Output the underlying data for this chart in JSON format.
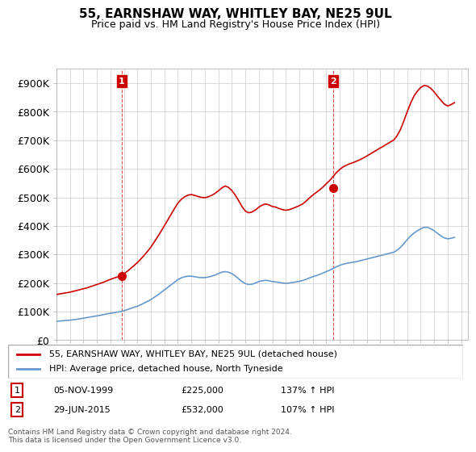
{
  "title": "55, EARNSHAW WAY, WHITLEY BAY, NE25 9UL",
  "subtitle": "Price paid vs. HM Land Registry's House Price Index (HPI)",
  "ylim": [
    0,
    950000
  ],
  "yticks": [
    0,
    100000,
    200000,
    300000,
    400000,
    500000,
    600000,
    700000,
    800000,
    900000
  ],
  "ytick_labels": [
    "£0",
    "£100K",
    "£200K",
    "£300K",
    "£400K",
    "£500K",
    "£600K",
    "£700K",
    "£800K",
    "£900K"
  ],
  "sale1": {
    "date_num": 1999.84,
    "price": 225000,
    "label": "1",
    "date_str": "05-NOV-1999",
    "hpi_pct": "137% ↑ HPI"
  },
  "sale2": {
    "date_num": 2015.49,
    "price": 532000,
    "label": "2",
    "date_str": "29-JUN-2015",
    "hpi_pct": "107% ↑ HPI"
  },
  "line_color_red": "#cc0000",
  "line_color_blue": "#6699cc",
  "grid_color": "#cccccc",
  "background_color": "#ffffff",
  "legend_label_red": "55, EARNSHAW WAY, WHITLEY BAY, NE25 9UL (detached house)",
  "legend_label_blue": "HPI: Average price, detached house, North Tyneside",
  "annotation_box_color": "#cc0000",
  "footer": "Contains HM Land Registry data © Crown copyright and database right 2024.\nThis data is licensed under the Open Government Licence v3.0.",
  "hpi_data": {
    "dates": [
      1995.0,
      1995.25,
      1995.5,
      1995.75,
      1996.0,
      1996.25,
      1996.5,
      1996.75,
      1997.0,
      1997.25,
      1997.5,
      1997.75,
      1998.0,
      1998.25,
      1998.5,
      1998.75,
      1999.0,
      1999.25,
      1999.5,
      1999.75,
      2000.0,
      2000.25,
      2000.5,
      2000.75,
      2001.0,
      2001.25,
      2001.5,
      2001.75,
      2002.0,
      2002.25,
      2002.5,
      2002.75,
      2003.0,
      2003.25,
      2003.5,
      2003.75,
      2004.0,
      2004.25,
      2004.5,
      2004.75,
      2005.0,
      2005.25,
      2005.5,
      2005.75,
      2006.0,
      2006.25,
      2006.5,
      2006.75,
      2007.0,
      2007.25,
      2007.5,
      2007.75,
      2008.0,
      2008.25,
      2008.5,
      2008.75,
      2009.0,
      2009.25,
      2009.5,
      2009.75,
      2010.0,
      2010.25,
      2010.5,
      2010.75,
      2011.0,
      2011.25,
      2011.5,
      2011.75,
      2012.0,
      2012.25,
      2012.5,
      2012.75,
      2013.0,
      2013.25,
      2013.5,
      2013.75,
      2014.0,
      2014.25,
      2014.5,
      2014.75,
      2015.0,
      2015.25,
      2015.5,
      2015.75,
      2016.0,
      2016.25,
      2016.5,
      2016.75,
      2017.0,
      2017.25,
      2017.5,
      2017.75,
      2018.0,
      2018.25,
      2018.5,
      2018.75,
      2019.0,
      2019.25,
      2019.5,
      2019.75,
      2020.0,
      2020.25,
      2020.5,
      2020.75,
      2021.0,
      2021.25,
      2021.5,
      2021.75,
      2022.0,
      2022.25,
      2022.5,
      2022.75,
      2023.0,
      2023.25,
      2023.5,
      2023.75,
      2024.0,
      2024.25,
      2024.5
    ],
    "values": [
      66000,
      67000,
      68000,
      69000,
      70000,
      71500,
      73000,
      75000,
      77000,
      79000,
      81000,
      83000,
      85000,
      87000,
      89500,
      92000,
      94000,
      96000,
      98000,
      100000,
      103000,
      107000,
      111000,
      115000,
      119000,
      124000,
      130000,
      136000,
      142000,
      150000,
      158000,
      167000,
      176000,
      185000,
      194000,
      203000,
      212000,
      218000,
      222000,
      224000,
      224000,
      222000,
      220000,
      219000,
      219000,
      221000,
      224000,
      228000,
      233000,
      238000,
      240000,
      238000,
      233000,
      225000,
      215000,
      205000,
      198000,
      195000,
      196000,
      200000,
      205000,
      208000,
      210000,
      208000,
      205000,
      204000,
      202000,
      200000,
      199000,
      200000,
      202000,
      204000,
      206000,
      209000,
      213000,
      218000,
      222000,
      226000,
      230000,
      235000,
      240000,
      245000,
      251000,
      257000,
      262000,
      266000,
      269000,
      271000,
      273000,
      275000,
      278000,
      281000,
      284000,
      287000,
      290000,
      293000,
      296000,
      299000,
      302000,
      305000,
      308000,
      315000,
      325000,
      338000,
      352000,
      365000,
      375000,
      383000,
      390000,
      395000,
      395000,
      390000,
      383000,
      374000,
      365000,
      358000,
      355000,
      357000,
      360000
    ]
  },
  "property_data": {
    "dates": [
      1995.0,
      1995.25,
      1995.5,
      1995.75,
      1996.0,
      1996.25,
      1996.5,
      1996.75,
      1997.0,
      1997.25,
      1997.5,
      1997.75,
      1998.0,
      1998.25,
      1998.5,
      1998.75,
      1999.0,
      1999.25,
      1999.5,
      1999.75,
      2000.0,
      2000.25,
      2000.5,
      2000.75,
      2001.0,
      2001.25,
      2001.5,
      2001.75,
      2002.0,
      2002.25,
      2002.5,
      2002.75,
      2003.0,
      2003.25,
      2003.5,
      2003.75,
      2004.0,
      2004.25,
      2004.5,
      2004.75,
      2005.0,
      2005.25,
      2005.5,
      2005.75,
      2006.0,
      2006.25,
      2006.5,
      2006.75,
      2007.0,
      2007.25,
      2007.5,
      2007.75,
      2008.0,
      2008.25,
      2008.5,
      2008.75,
      2009.0,
      2009.25,
      2009.5,
      2009.75,
      2010.0,
      2010.25,
      2010.5,
      2010.75,
      2011.0,
      2011.25,
      2011.5,
      2011.75,
      2012.0,
      2012.25,
      2012.5,
      2012.75,
      2013.0,
      2013.25,
      2013.5,
      2013.75,
      2014.0,
      2014.25,
      2014.5,
      2014.75,
      2015.0,
      2015.25,
      2015.5,
      2015.75,
      2016.0,
      2016.25,
      2016.5,
      2016.75,
      2017.0,
      2017.25,
      2017.5,
      2017.75,
      2018.0,
      2018.25,
      2018.5,
      2018.75,
      2019.0,
      2019.25,
      2019.5,
      2019.75,
      2020.0,
      2020.25,
      2020.5,
      2020.75,
      2021.0,
      2021.25,
      2021.5,
      2021.75,
      2022.0,
      2022.25,
      2022.5,
      2022.75,
      2023.0,
      2023.25,
      2023.5,
      2023.75,
      2024.0,
      2024.25,
      2024.5
    ],
    "values": [
      160000,
      162000,
      164000,
      166000,
      168000,
      171000,
      174000,
      177000,
      180000,
      183000,
      187000,
      191000,
      195000,
      199000,
      203000,
      208000,
      213000,
      217000,
      221000,
      225000,
      232000,
      241000,
      251000,
      261000,
      272000,
      284000,
      297000,
      311000,
      326000,
      344000,
      362000,
      381000,
      401000,
      421000,
      441000,
      461000,
      480000,
      493000,
      502000,
      508000,
      510000,
      507000,
      503000,
      500000,
      499000,
      502000,
      507000,
      514000,
      523000,
      533000,
      540000,
      535000,
      524000,
      508000,
      489000,
      468000,
      452000,
      446000,
      449000,
      456000,
      466000,
      473000,
      477000,
      474000,
      468000,
      466000,
      461000,
      457000,
      455000,
      457000,
      461000,
      466000,
      471000,
      477000,
      487000,
      498000,
      508000,
      517000,
      526000,
      536000,
      548000,
      559000,
      573000,
      587000,
      598000,
      607000,
      613000,
      618000,
      622000,
      627000,
      632000,
      638000,
      645000,
      652000,
      659000,
      666000,
      673000,
      680000,
      687000,
      694000,
      701000,
      716000,
      738000,
      768000,
      800000,
      830000,
      855000,
      872000,
      885000,
      892000,
      890000,
      882000,
      869000,
      854000,
      840000,
      827000,
      820000,
      825000,
      832000
    ]
  }
}
